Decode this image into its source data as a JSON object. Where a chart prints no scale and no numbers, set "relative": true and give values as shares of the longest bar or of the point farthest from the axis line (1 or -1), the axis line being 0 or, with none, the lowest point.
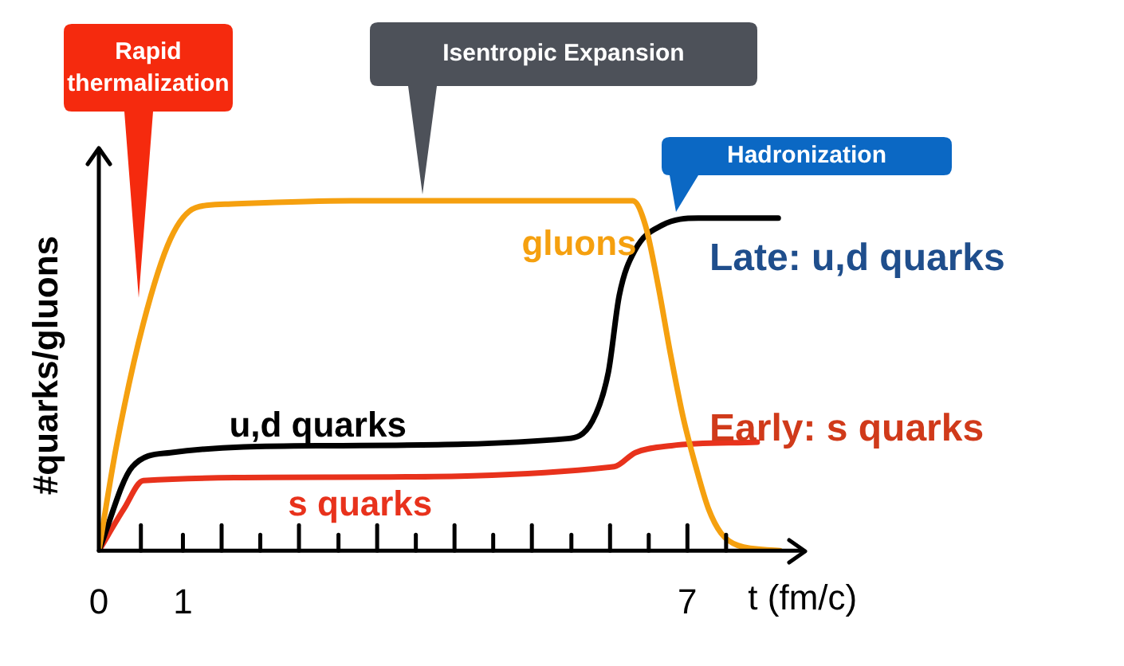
{
  "chart_data": {
    "type": "line",
    "relative": true,
    "xlabel": "t (fm/c)",
    "ylabel": "#quarks/gluons",
    "xlim": [
      0,
      8.4
    ],
    "xticks": [
      0,
      {
        "value": 0.5,
        "label": null
      },
      1,
      {
        "value": 1.46,
        "label": null
      },
      {
        "value": 1.92,
        "label": null
      },
      {
        "value": 2.38,
        "label": null
      },
      {
        "value": 2.85,
        "label": null
      },
      {
        "value": 3.31,
        "label": null
      },
      {
        "value": 3.77,
        "label": null
      },
      {
        "value": 4.23,
        "label": null
      },
      {
        "value": 4.69,
        "label": null
      },
      {
        "value": 5.15,
        "label": null
      },
      {
        "value": 5.62,
        "label": null
      },
      {
        "value": 6.08,
        "label": null
      },
      {
        "value": 6.54,
        "label": null
      },
      7,
      {
        "value": 7.46,
        "label": null
      }
    ],
    "series": [
      {
        "name": "gluons",
        "color": "#f5a00f",
        "x": [
          0,
          0.21,
          0.53,
          0.85,
          1.15,
          1.5,
          3,
          6.35,
          6.5,
          6.65,
          6.8,
          6.95,
          7.1,
          7.25,
          7.4,
          7.6,
          8.1
        ],
        "values": [
          0,
          0.3,
          0.65,
          0.89,
          0.98,
          0.99,
          1,
          1,
          0.93,
          0.76,
          0.56,
          0.38,
          0.24,
          0.12,
          0.05,
          0.015,
          0
        ]
      },
      {
        "name": "u,d quarks",
        "color": "#000000",
        "x": [
          0,
          0.4,
          0.85,
          2.74,
          5.57,
          5.87,
          6.06,
          6.19,
          6.38,
          6.7,
          7.13,
          8.08
        ],
        "values": [
          0,
          0.24,
          0.28,
          0.3,
          0.32,
          0.37,
          0.51,
          0.73,
          0.86,
          0.93,
          0.95,
          0.95
        ]
      },
      {
        "name": "s quarks",
        "color": "#e8321c",
        "x": [
          0,
          0.3,
          0.53,
          2.74,
          6.13,
          6.38,
          6.81,
          7.83
        ],
        "values": [
          0,
          0.12,
          0.2,
          0.21,
          0.24,
          0.28,
          0.3,
          0.31
        ]
      }
    ],
    "annotations": [
      "Rapid thermalization",
      "Isentropic Expansion",
      "Hadronization",
      "Late: u,d quarks",
      "Early: s quarks"
    ],
    "grid": false,
    "legend": false,
    "marker": "none",
    "line_style": "solid"
  }
}
